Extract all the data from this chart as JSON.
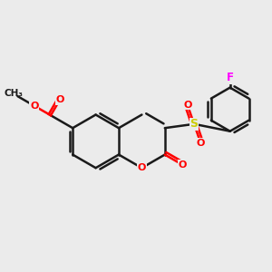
{
  "bg_color": "#ebebeb",
  "bond_color": "#1a1a1a",
  "bond_width": 1.8,
  "figsize": [
    3.0,
    3.0
  ],
  "dpi": 100,
  "atom_colors": {
    "O": "#ff0000",
    "S": "#cccc00",
    "F": "#ff00ff",
    "C": "#1a1a1a"
  },
  "xlim": [
    0,
    10
  ],
  "ylim": [
    0,
    10
  ]
}
